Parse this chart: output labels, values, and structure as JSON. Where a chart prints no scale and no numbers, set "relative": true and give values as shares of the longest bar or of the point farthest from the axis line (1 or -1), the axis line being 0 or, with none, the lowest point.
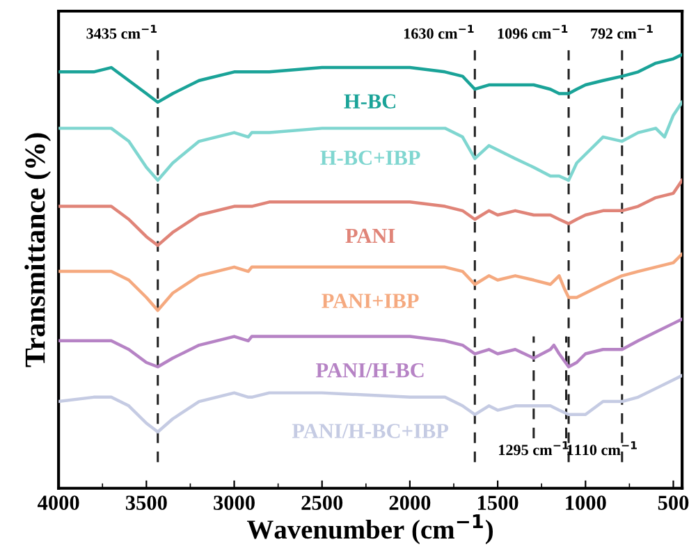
{
  "chart_data": {
    "type": "line",
    "relative": true,
    "xlabel": "Wavenumber (cm$^{−1}$)",
    "ylabel": "Transmittance (%)",
    "xlim": [
      4000,
      450
    ],
    "xticks": [
      4000,
      3500,
      3000,
      2500,
      2000,
      1500,
      1000,
      500
    ],
    "grid": false,
    "legend": false,
    "line_style": "solid",
    "marker": "none",
    "tick_labels": "x",
    "series": [
      {
        "name": "H-BC",
        "color": "#1aa398",
        "x": [
          4000,
          3800,
          3700,
          3600,
          3500,
          3435,
          3350,
          3200,
          3000,
          2920,
          2900,
          2800,
          2500,
          2000,
          1800,
          1700,
          1630,
          1550,
          1500,
          1400,
          1295,
          1200,
          1150,
          1096,
          1050,
          1000,
          900,
          792,
          700,
          600,
          500,
          450
        ],
        "values": [
          0.96,
          0.96,
          0.97,
          0.94,
          0.91,
          0.89,
          0.91,
          0.94,
          0.96,
          0.96,
          0.96,
          0.96,
          0.97,
          0.97,
          0.96,
          0.95,
          0.92,
          0.93,
          0.93,
          0.93,
          0.93,
          0.92,
          0.91,
          0.91,
          0.92,
          0.93,
          0.94,
          0.95,
          0.96,
          0.98,
          0.99,
          1.0
        ]
      },
      {
        "name": "H-BC+IBP",
        "color": "#7fd6d0",
        "x": [
          4000,
          3800,
          3700,
          3600,
          3500,
          3435,
          3350,
          3200,
          3000,
          2920,
          2900,
          2800,
          2500,
          2000,
          1800,
          1700,
          1630,
          1550,
          1500,
          1400,
          1295,
          1200,
          1150,
          1096,
          1050,
          1000,
          900,
          792,
          700,
          600,
          550,
          500,
          450
        ],
        "values": [
          0.83,
          0.83,
          0.83,
          0.8,
          0.74,
          0.71,
          0.75,
          0.8,
          0.82,
          0.81,
          0.82,
          0.82,
          0.83,
          0.83,
          0.83,
          0.81,
          0.76,
          0.79,
          0.78,
          0.76,
          0.74,
          0.72,
          0.72,
          0.71,
          0.75,
          0.77,
          0.81,
          0.8,
          0.82,
          0.83,
          0.81,
          0.86,
          0.89
        ]
      },
      {
        "name": "PANI",
        "color": "#e08478",
        "x": [
          4000,
          3800,
          3700,
          3600,
          3500,
          3435,
          3350,
          3200,
          3000,
          2920,
          2900,
          2800,
          2500,
          2000,
          1800,
          1700,
          1630,
          1550,
          1500,
          1400,
          1295,
          1200,
          1150,
          1096,
          1050,
          1000,
          900,
          792,
          700,
          600,
          500,
          450
        ],
        "values": [
          0.65,
          0.65,
          0.65,
          0.62,
          0.58,
          0.56,
          0.59,
          0.63,
          0.65,
          0.65,
          0.65,
          0.66,
          0.66,
          0.66,
          0.65,
          0.64,
          0.62,
          0.64,
          0.63,
          0.64,
          0.63,
          0.63,
          0.62,
          0.61,
          0.62,
          0.63,
          0.64,
          0.64,
          0.65,
          0.67,
          0.68,
          0.71
        ]
      },
      {
        "name": "PANI+IBP",
        "color": "#f5a97f",
        "x": [
          4000,
          3800,
          3700,
          3600,
          3500,
          3435,
          3350,
          3200,
          3000,
          2920,
          2900,
          2800,
          2500,
          2000,
          1800,
          1700,
          1630,
          1550,
          1500,
          1400,
          1295,
          1200,
          1150,
          1120,
          1096,
          1050,
          1000,
          900,
          792,
          700,
          600,
          500,
          450
        ],
        "values": [
          0.5,
          0.5,
          0.5,
          0.48,
          0.44,
          0.41,
          0.45,
          0.49,
          0.51,
          0.5,
          0.51,
          0.51,
          0.51,
          0.51,
          0.51,
          0.5,
          0.47,
          0.49,
          0.48,
          0.49,
          0.48,
          0.47,
          0.49,
          0.46,
          0.44,
          0.44,
          0.45,
          0.47,
          0.49,
          0.5,
          0.51,
          0.52,
          0.54
        ]
      },
      {
        "name": "PANI/H-BC",
        "color": "#b683c5",
        "x": [
          4000,
          3800,
          3700,
          3600,
          3500,
          3435,
          3350,
          3200,
          3000,
          2920,
          2900,
          2800,
          2500,
          2000,
          1800,
          1700,
          1630,
          1550,
          1500,
          1400,
          1295,
          1200,
          1180,
          1150,
          1096,
          1050,
          1000,
          900,
          792,
          700,
          600,
          500,
          450
        ],
        "values": [
          0.34,
          0.34,
          0.34,
          0.32,
          0.29,
          0.28,
          0.3,
          0.33,
          0.35,
          0.34,
          0.35,
          0.35,
          0.35,
          0.35,
          0.34,
          0.33,
          0.31,
          0.32,
          0.31,
          0.32,
          0.3,
          0.32,
          0.33,
          0.31,
          0.28,
          0.29,
          0.31,
          0.32,
          0.32,
          0.34,
          0.36,
          0.38,
          0.39
        ]
      },
      {
        "name": "PANI/H-BC+IBP",
        "color": "#c5cbe3",
        "x": [
          4000,
          3800,
          3700,
          3600,
          3500,
          3435,
          3350,
          3200,
          3000,
          2920,
          2900,
          2800,
          2500,
          2000,
          1800,
          1700,
          1630,
          1550,
          1500,
          1400,
          1295,
          1200,
          1150,
          1096,
          1050,
          1000,
          900,
          792,
          700,
          600,
          500,
          450
        ],
        "values": [
          0.2,
          0.21,
          0.21,
          0.19,
          0.15,
          0.13,
          0.16,
          0.2,
          0.22,
          0.21,
          0.21,
          0.22,
          0.22,
          0.21,
          0.21,
          0.19,
          0.17,
          0.19,
          0.18,
          0.19,
          0.19,
          0.19,
          0.18,
          0.17,
          0.17,
          0.17,
          0.2,
          0.2,
          0.21,
          0.23,
          0.25,
          0.26
        ]
      }
    ],
    "ref_lines": [
      {
        "axis": "x",
        "value": 3435,
        "label": "3435 cm$^{−1}$",
        "color": "#222222",
        "line_style": "dashed"
      },
      {
        "axis": "x",
        "value": 1630,
        "label": "1630 cm$^{−1}$",
        "color": "#222222",
        "line_style": "dashed"
      },
      {
        "axis": "x",
        "value": 1096,
        "label": "1096 cm$^{−1}$",
        "color": "#222222",
        "line_style": "dashed"
      },
      {
        "axis": "x",
        "value": 792,
        "label": "792 cm$^{−1}$",
        "color": "#222222",
        "line_style": "dashed"
      },
      {
        "axis": "x",
        "value": 1295,
        "label": "1295 cm$^{−1}$",
        "color": "#222222",
        "line_style": "dashed"
      },
      {
        "axis": "x",
        "value": 1110,
        "label": "1110 cm$^{−1}$",
        "color": "#222222",
        "line_style": "dashed"
      }
    ]
  }
}
